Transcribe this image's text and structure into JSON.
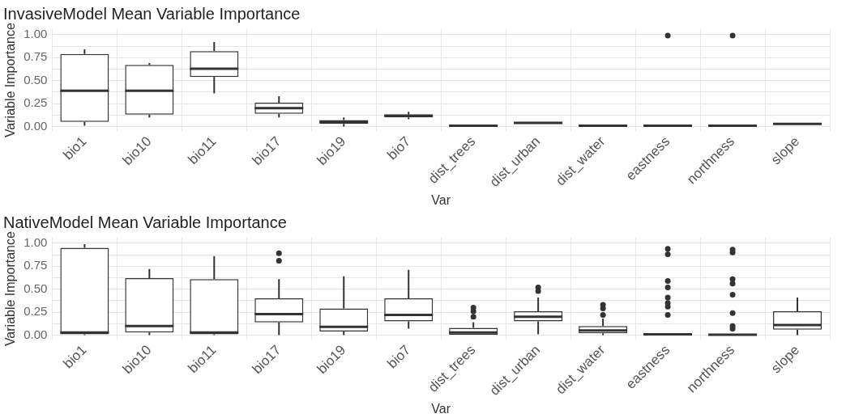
{
  "chart_data": [
    {
      "type": "box",
      "title": "InvasiveModel Mean Variable Importance",
      "xlabel": "Var",
      "ylabel": "Variable Importance",
      "color": "#333333",
      "grid": true,
      "categories": [
        "bio1",
        "bio10",
        "bio11",
        "bio17",
        "bio19",
        "bio7",
        "dist_trees",
        "dist_urban",
        "dist_water",
        "eastness",
        "northness",
        "slope"
      ],
      "ylim": [
        -0.05,
        1.06
      ],
      "yticks": [
        {
          "value": 0,
          "label": "0.00"
        },
        {
          "value": 0.125,
          "label": null
        },
        {
          "value": 0.25,
          "label": "0.25"
        },
        {
          "value": 0.375,
          "label": null
        },
        {
          "value": 0.5,
          "label": "0.50"
        },
        {
          "value": 0.625,
          "label": null
        },
        {
          "value": 0.75,
          "label": "0.75"
        },
        {
          "value": 0.875,
          "label": null
        },
        {
          "value": 1,
          "label": "1.00"
        }
      ],
      "boxes": [
        {
          "low": 0.01,
          "q1": 0.05,
          "median": 0.39,
          "q3": 0.79,
          "high": 0.84
        },
        {
          "low": 0.1,
          "q1": 0.13,
          "median": 0.39,
          "q3": 0.67,
          "high": 0.69
        },
        {
          "low": 0.36,
          "q1": 0.54,
          "median": 0.63,
          "q3": 0.82,
          "high": 0.92
        },
        {
          "low": 0.1,
          "q1": 0.14,
          "median": 0.2,
          "q3": 0.26,
          "high": 0.33
        },
        {
          "low": 0,
          "q1": 0.03,
          "median": 0.05,
          "q3": 0.07,
          "high": 0.1
        },
        {
          "low": 0.08,
          "q1": 0.1,
          "median": 0.12,
          "q3": 0.13,
          "high": 0.16
        },
        {
          "low": 0,
          "q1": 0,
          "median": 0.01,
          "q3": 0.02,
          "high": 0.02
        },
        {
          "low": 0.03,
          "q1": 0.03,
          "median": 0.04,
          "q3": 0.05,
          "high": 0.05
        },
        {
          "low": 0,
          "q1": 0,
          "median": 0.01,
          "q3": 0.02,
          "high": 0.02
        },
        {
          "low": 0,
          "q1": 0,
          "median": 0.01,
          "q3": 0.02,
          "high": 0.02,
          "outliers": [
            0.99
          ]
        },
        {
          "low": 0,
          "q1": 0,
          "median": 0.01,
          "q3": 0.02,
          "high": 0.02,
          "outliers": [
            0.99
          ]
        },
        {
          "low": 0.02,
          "q1": 0.02,
          "median": 0.03,
          "q3": 0.04,
          "high": 0.04
        }
      ]
    },
    {
      "type": "box",
      "title": "NativeModel Mean Variable Importance",
      "xlabel": "Var",
      "ylabel": "Variable Importance",
      "color": "#333333",
      "grid": true,
      "categories": [
        "bio1",
        "bio10",
        "bio11",
        "bio17",
        "bio19",
        "bio7",
        "dist_trees",
        "dist_urban",
        "dist_water",
        "eastness",
        "northness",
        "slope"
      ],
      "ylim": [
        -0.05,
        1.06
      ],
      "yticks": [
        {
          "value": 0,
          "label": "0.00"
        },
        {
          "value": 0.125,
          "label": null
        },
        {
          "value": 0.25,
          "label": "0.25"
        },
        {
          "value": 0.375,
          "label": null
        },
        {
          "value": 0.5,
          "label": "0.50"
        },
        {
          "value": 0.625,
          "label": null
        },
        {
          "value": 0.75,
          "label": "0.75"
        },
        {
          "value": 0.875,
          "label": null
        },
        {
          "value": 1,
          "label": "1.00"
        }
      ],
      "boxes": [
        {
          "low": 0,
          "q1": 0.01,
          "median": 0.03,
          "q3": 0.95,
          "high": 0.99
        },
        {
          "low": 0,
          "q1": 0.03,
          "median": 0.1,
          "q3": 0.62,
          "high": 0.72
        },
        {
          "low": 0,
          "q1": 0.01,
          "median": 0.03,
          "q3": 0.61,
          "high": 0.86
        },
        {
          "low": 0,
          "q1": 0.14,
          "median": 0.23,
          "q3": 0.4,
          "high": 0.61,
          "outliers": [
            0.81,
            0.89
          ]
        },
        {
          "low": 0,
          "q1": 0.04,
          "median": 0.09,
          "q3": 0.29,
          "high": 0.64
        },
        {
          "low": 0.07,
          "q1": 0.15,
          "median": 0.22,
          "q3": 0.4,
          "high": 0.71
        },
        {
          "low": 0,
          "q1": 0,
          "median": 0.03,
          "q3": 0.08,
          "high": 0.14,
          "outliers": [
            0.2,
            0.26,
            0.3
          ]
        },
        {
          "low": 0.01,
          "q1": 0.15,
          "median": 0.2,
          "q3": 0.26,
          "high": 0.41,
          "outliers": [
            0.48,
            0.52
          ]
        },
        {
          "low": 0,
          "q1": 0.02,
          "median": 0.05,
          "q3": 0.1,
          "high": 0.18,
          "outliers": [
            0.22,
            0.29,
            0.33
          ]
        },
        {
          "low": 0,
          "q1": 0,
          "median": 0.01,
          "q3": 0.02,
          "high": 0.02,
          "outliers": [
            0.22,
            0.31,
            0.35,
            0.41,
            0.52,
            0.59,
            0.88,
            0.94
          ]
        },
        {
          "low": 0,
          "q1": 0,
          "median": 0.005,
          "q3": 0.01,
          "high": 0.01,
          "outliers": [
            0.07,
            0.1,
            0.24,
            0.44,
            0.56,
            0.61,
            0.9,
            0.93
          ]
        },
        {
          "low": 0,
          "q1": 0.06,
          "median": 0.11,
          "q3": 0.26,
          "high": 0.41
        }
      ]
    }
  ]
}
